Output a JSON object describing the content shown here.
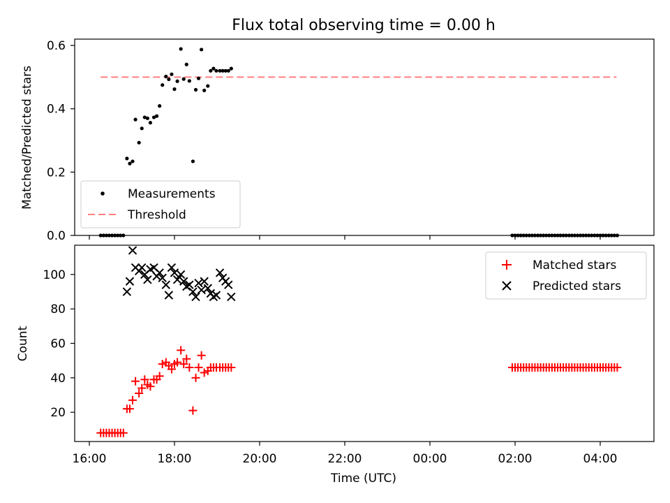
{
  "title": "Flux total observing time = 0.00 h",
  "chart_data": [
    {
      "type": "scatter",
      "ylabel": "Matched/Predicted stars",
      "xlabel": "",
      "ylim": [
        0,
        0.62
      ],
      "yticks": [
        "0.0",
        "0.2",
        "0.4",
        "0.6"
      ],
      "yticks_values": [
        0,
        0.2,
        0.4,
        0.6
      ],
      "legend": {
        "placement": "lower-left",
        "items": [
          "Measurements",
          "Threshold"
        ]
      },
      "threshold": 0.5,
      "threshold_x": [
        "16:16",
        "04:23"
      ],
      "series": [
        {
          "name": "Measurements",
          "color": "#000000",
          "marker": "dot",
          "x": [
            "16:16",
            "16:20",
            "16:24",
            "16:28",
            "16:32",
            "16:36",
            "16:40",
            "16:44",
            "16:48",
            "16:53",
            "16:57",
            "17:01",
            "17:05",
            "17:10",
            "17:14",
            "17:18",
            "17:22",
            "17:26",
            "17:31",
            "17:35",
            "17:39",
            "17:43",
            "17:48",
            "17:52",
            "17:56",
            "18:00",
            "18:04",
            "18:09",
            "18:13",
            "18:17",
            "18:21",
            "18:26",
            "18:30",
            "18:34",
            "18:38",
            "18:42",
            "18:47",
            "18:51",
            "18:55",
            "18:59",
            "19:04",
            "19:08",
            "19:12",
            "19:16",
            "19:20",
            "01:56",
            "02:00",
            "02:04",
            "02:08",
            "02:12",
            "02:16",
            "02:20",
            "02:24",
            "02:28",
            "02:32",
            "02:36",
            "02:40",
            "02:44",
            "02:48",
            "02:52",
            "02:56",
            "03:00",
            "03:04",
            "03:08",
            "03:12",
            "03:16",
            "03:20",
            "03:24",
            "03:28",
            "03:32",
            "03:36",
            "03:40",
            "03:44",
            "03:48",
            "03:52",
            "03:56",
            "04:00",
            "04:04",
            "04:08",
            "04:12",
            "04:16",
            "04:20",
            "04:24"
          ],
          "y": [
            0,
            0,
            0,
            0,
            0,
            0,
            0,
            0,
            0,
            0.243,
            0.227,
            0.234,
            0.366,
            0.293,
            0.338,
            0.373,
            0.37,
            0.356,
            0.373,
            0.377,
            0.409,
            0.475,
            0.502,
            0.493,
            0.509,
            0.462,
            0.487,
            0.589,
            0.494,
            0.54,
            0.488,
            0.234,
            0.46,
            0.496,
            0.587,
            0.458,
            0.472,
            0.52,
            0.527,
            0.52,
            0.52,
            0.52,
            0.52,
            0.52,
            0.527,
            0,
            0,
            0,
            0,
            0,
            0,
            0,
            0,
            0,
            0,
            0,
            0,
            0,
            0,
            0,
            0,
            0,
            0,
            0,
            0,
            0,
            0,
            0,
            0,
            0,
            0,
            0,
            0,
            0,
            0,
            0,
            0,
            0,
            0,
            0,
            0,
            0,
            0
          ]
        },
        {
          "name": "Threshold",
          "color": "#ff7f7f",
          "style": "dashed",
          "value": 0.5
        }
      ]
    },
    {
      "type": "scatter",
      "ylabel": "Count",
      "xlabel": "Time (UTC)",
      "ylim": [
        3,
        117
      ],
      "yticks": [
        "20",
        "40",
        "60",
        "80",
        "100"
      ],
      "yticks_values": [
        20,
        40,
        60,
        80,
        100
      ],
      "xticks": [
        "16:00",
        "18:00",
        "20:00",
        "22:00",
        "00:00",
        "02:00",
        "04:00"
      ],
      "legend": {
        "placement": "top-right",
        "items": [
          "Matched stars",
          "Predicted stars"
        ]
      },
      "series": [
        {
          "name": "Matched stars",
          "color": "#ff0000",
          "marker": "plus",
          "x": [
            "16:16",
            "16:20",
            "16:24",
            "16:28",
            "16:32",
            "16:36",
            "16:40",
            "16:44",
            "16:48",
            "16:53",
            "16:57",
            "17:01",
            "17:05",
            "17:10",
            "17:14",
            "17:18",
            "17:22",
            "17:26",
            "17:31",
            "17:35",
            "17:39",
            "17:43",
            "17:48",
            "17:52",
            "17:56",
            "18:00",
            "18:04",
            "18:09",
            "18:13",
            "18:17",
            "18:21",
            "18:26",
            "18:30",
            "18:34",
            "18:38",
            "18:42",
            "18:47",
            "18:51",
            "18:55",
            "18:59",
            "19:04",
            "19:08",
            "19:12",
            "19:16",
            "19:20",
            "01:56",
            "02:00",
            "02:04",
            "02:08",
            "02:12",
            "02:16",
            "02:20",
            "02:24",
            "02:28",
            "02:32",
            "02:36",
            "02:40",
            "02:44",
            "02:48",
            "02:52",
            "02:56",
            "03:00",
            "03:04",
            "03:08",
            "03:12",
            "03:16",
            "03:20",
            "03:24",
            "03:28",
            "03:32",
            "03:36",
            "03:40",
            "03:44",
            "03:48",
            "03:52",
            "03:56",
            "04:00",
            "04:04",
            "04:08",
            "04:12",
            "04:16",
            "04:20",
            "04:24"
          ],
          "y": [
            8,
            8,
            8,
            8,
            8,
            8,
            8,
            8,
            8,
            22,
            22,
            27,
            38,
            31,
            34,
            39,
            36,
            35,
            39,
            39,
            41,
            48,
            49,
            47,
            45,
            48,
            49,
            56,
            48,
            51,
            46,
            21,
            40,
            46,
            53,
            43,
            44,
            46,
            46,
            46,
            46,
            46,
            46,
            46,
            46,
            46,
            46,
            46,
            46,
            46,
            46,
            46,
            46,
            46,
            46,
            46,
            46,
            46,
            46,
            46,
            46,
            46,
            46,
            46,
            46,
            46,
            46,
            46,
            46,
            46,
            46,
            46,
            46,
            46,
            46,
            46,
            46,
            46,
            46,
            46,
            46,
            46,
            46
          ]
        },
        {
          "name": "Predicted stars",
          "color": "#000000",
          "marker": "x",
          "x": [
            "16:53",
            "16:57",
            "17:01",
            "17:05",
            "17:10",
            "17:14",
            "17:18",
            "17:22",
            "17:26",
            "17:31",
            "17:35",
            "17:39",
            "17:43",
            "17:48",
            "17:52",
            "17:56",
            "18:00",
            "18:04",
            "18:09",
            "18:13",
            "18:17",
            "18:21",
            "18:26",
            "18:30",
            "18:34",
            "18:38",
            "18:42",
            "18:47",
            "18:51",
            "18:55",
            "18:59",
            "19:04",
            "19:08",
            "19:12",
            "19:16",
            "19:20"
          ],
          "y": [
            90,
            96,
            114,
            104,
            102,
            104,
            100,
            97,
            103,
            104,
            99,
            101,
            98,
            94,
            88,
            104,
            101,
            97,
            100,
            96,
            93,
            94,
            90,
            87,
            95,
            91,
            96,
            92,
            89,
            87,
            88,
            101,
            98,
            96,
            94,
            87
          ]
        }
      ]
    }
  ]
}
